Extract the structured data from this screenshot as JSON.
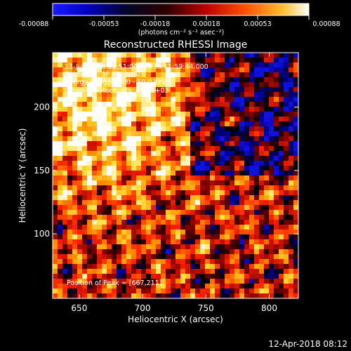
{
  "chart_data": {
    "type": "heatmap",
    "title": "Reconstructed RHESSI Image",
    "xlabel": "Heliocentric X (arcsec)",
    "ylabel": "Heliocentric Y (arcsec)",
    "xlim": [
      629,
      823
    ],
    "ylim": [
      49,
      243
    ],
    "x_ticks": [
      650,
      700,
      750,
      800
    ],
    "y_ticks": [
      100,
      150,
      200
    ],
    "colorbar": {
      "range": [
        -0.00088,
        0.00088
      ],
      "ticks": [
        "-0.00088",
        "-0.00053",
        "-0.00018",
        "0.00018",
        "0.00053",
        "0.00088"
      ],
      "unit_label": "(photons cm⁻² s⁻¹ asec⁻²)",
      "colormap": [
        "#1a1aff",
        "#0000a0",
        "#000000",
        "#800000",
        "#ff2000",
        "#ff9000",
        "#ffe040",
        "#ffffff"
      ]
    },
    "peak_position": [
      667,
      211
    ],
    "annotations": [
      "13-Jun-2018 11:51:04.000 to 11:59:44.000",
      "Detectors: 3F 8F, Att 0",
      "Energy Range: 25.0 - 50.0 keV",
      "Clean - Photocounts: 4.29E+03",
      "Position of Peak = [667,211]"
    ],
    "footer_date": "12-Apr-2018 08:12"
  }
}
